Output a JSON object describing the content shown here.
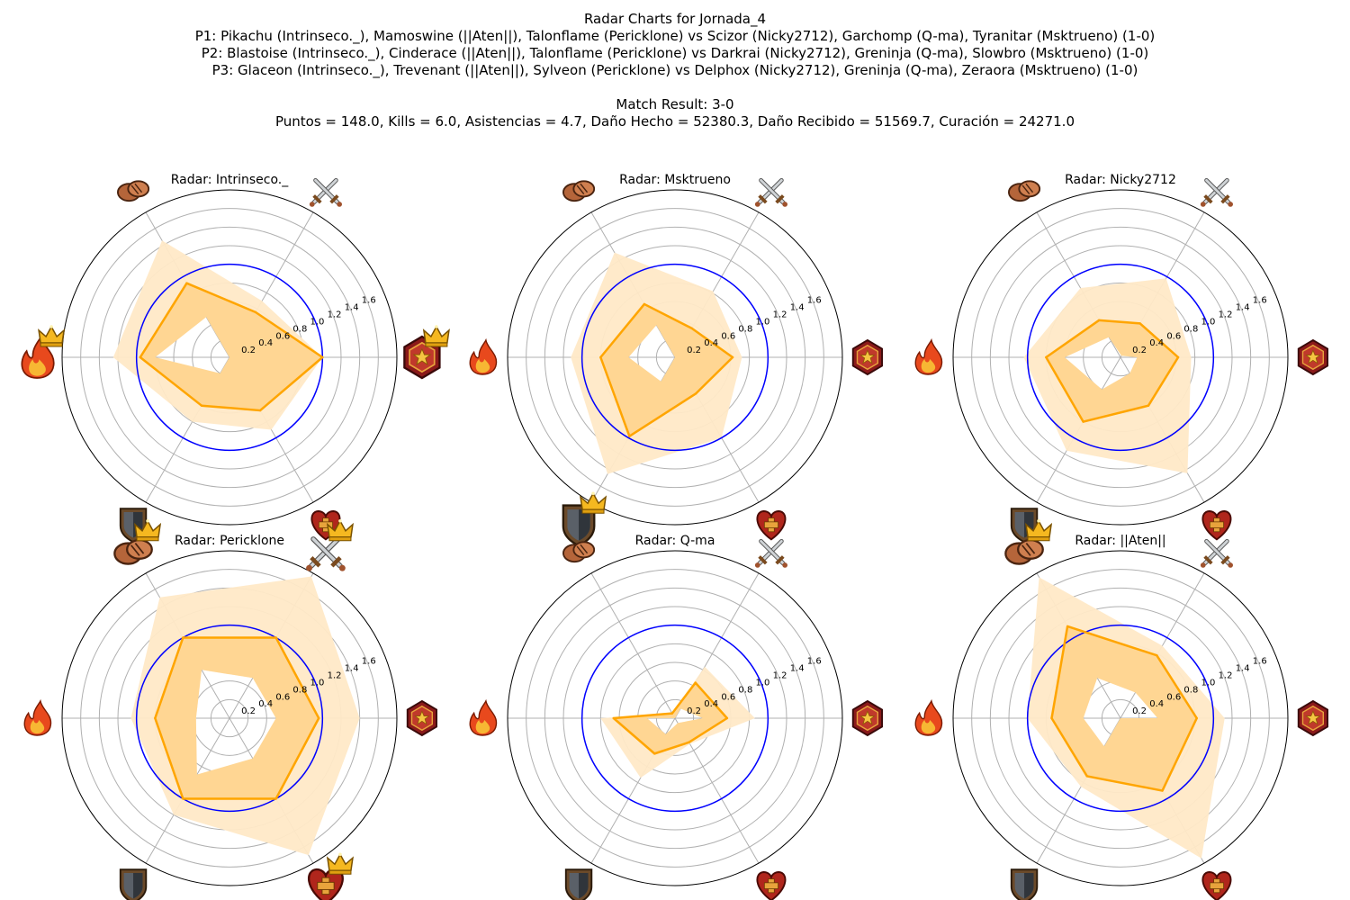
{
  "header": {
    "title": "Radar Charts for Jornada_4",
    "p1": "P1: Pikachu (Intrinseco._), Mamoswine (||Aten||), Talonflame (Pericklone) vs Scizor (Nicky2712), Garchomp (Q-ma), Tyranitar (Msktrueno) (1-0)",
    "p2": "P2: Blastoise (Intrinseco._), Cinderace (||Aten||), Talonflame (Pericklone) vs Darkrai (Nicky2712), Greninja (Q-ma), Slowbro (Msktrueno) (1-0)",
    "p3": "P3: Glaceon (Intrinseco._), Trevenant (||Aten||), Sylveon (Pericklone) vs Delphox (Nicky2712), Greninja (Q-ma), Zeraora (Msktrueno) (1-0)",
    "result": "Match Result: 3-0",
    "stats": "Puntos = 148.0, Kills = 6.0, Asistencias = 4.7, Daño Hecho = 52380.3, Daño Recibido = 51569.7, Curación = 24271.0"
  },
  "colors": {
    "line": "#ffa500",
    "fill": "#ffd28a",
    "fill_light": "#ffe9c7",
    "reference_circle": "#0000ff",
    "grid": "#b0b0b0"
  },
  "axis_icons": [
    "star-badge-icon",
    "crossed-swords-icon",
    "handshake-icon",
    "fire-icon",
    "shield-icon",
    "heart-plus-icon"
  ],
  "chart_data": [
    {
      "type": "radar",
      "title": "Radar: Intrinseco._",
      "axes_order": [
        "star-badge-icon",
        "crossed-swords-icon",
        "handshake-icon",
        "fire-icon",
        "shield-icon",
        "heart-plus-icon"
      ],
      "rlim": [
        0,
        1.8
      ],
      "rticks": [
        "0.2",
        "0.4",
        "0.6",
        "0.8",
        "1.0",
        "1.2",
        "1.4",
        "1.6"
      ],
      "reference": 1.0,
      "values": [
        1.0,
        0.56,
        0.92,
        0.96,
        0.6,
        0.66
      ],
      "range_min": [
        0.58,
        0.0,
        0.5,
        0.8,
        0.2,
        0.0
      ],
      "range_max": [
        1.0,
        0.7,
        1.45,
        1.25,
        0.8,
        0.9
      ],
      "crowns": [
        "star-badge-icon",
        "fire-icon"
      ]
    },
    {
      "type": "radar",
      "title": "Radar: Msktrueno",
      "axes_order": [
        "star-badge-icon",
        "crossed-swords-icon",
        "handshake-icon",
        "fire-icon",
        "shield-icon",
        "heart-plus-icon"
      ],
      "rlim": [
        0,
        1.8
      ],
      "rticks": [
        "0.2",
        "0.4",
        "0.6",
        "0.8",
        "1.0",
        "1.2",
        "1.4",
        "1.6"
      ],
      "reference": 1.0,
      "values": [
        0.62,
        0.36,
        0.66,
        0.8,
        0.98,
        0.45
      ],
      "range_min": [
        0.2,
        0.0,
        0.4,
        0.5,
        0.3,
        0.0
      ],
      "range_max": [
        0.72,
        0.82,
        1.3,
        1.12,
        1.45,
        1.0
      ],
      "crowns": [
        "shield-icon"
      ]
    },
    {
      "type": "radar",
      "title": "Radar: Nicky2712",
      "axes_order": [
        "star-badge-icon",
        "crossed-swords-icon",
        "handshake-icon",
        "fire-icon",
        "shield-icon",
        "heart-plus-icon"
      ],
      "rlim": [
        0,
        1.8
      ],
      "rticks": [
        "0.2",
        "0.4",
        "0.6",
        "0.8",
        "1.0",
        "1.2",
        "1.4",
        "1.6"
      ],
      "reference": 1.0,
      "values": [
        0.62,
        0.42,
        0.46,
        0.8,
        0.8,
        0.6
      ],
      "range_min": [
        0.18,
        0.02,
        0.25,
        0.6,
        0.4,
        0.2
      ],
      "range_max": [
        0.76,
        0.98,
        0.86,
        1.04,
        1.16,
        1.44
      ],
      "crowns": []
    },
    {
      "type": "radar",
      "title": "Radar: Pericklone",
      "axes_order": [
        "star-badge-icon",
        "crossed-swords-icon",
        "handshake-icon",
        "fire-icon",
        "shield-icon",
        "heart-plus-icon"
      ],
      "rlim": [
        0,
        1.8
      ],
      "rticks": [
        "0.2",
        "0.4",
        "0.6",
        "0.8",
        "1.0",
        "1.2",
        "1.4",
        "1.6"
      ],
      "reference": 1.0,
      "values": [
        0.96,
        1.0,
        1.0,
        0.8,
        1.0,
        1.0
      ],
      "range_min": [
        0.5,
        0.5,
        0.6,
        0.36,
        0.7,
        0.5
      ],
      "range_max": [
        1.4,
        1.76,
        1.5,
        1.06,
        1.2,
        1.7
      ],
      "crowns": [
        "handshake-icon",
        "crossed-swords-icon",
        "heart-plus-icon"
      ]
    },
    {
      "type": "radar",
      "title": "Radar: Q-ma",
      "axes_order": [
        "star-badge-icon",
        "crossed-swords-icon",
        "handshake-icon",
        "fire-icon",
        "shield-icon",
        "heart-plus-icon"
      ],
      "rlim": [
        0,
        1.8
      ],
      "rticks": [
        "0.2",
        "0.4",
        "0.6",
        "0.8",
        "1.0",
        "1.2",
        "1.4",
        "1.6"
      ],
      "reference": 1.0,
      "values": [
        0.56,
        0.44,
        0.06,
        0.66,
        0.44,
        0.3
      ],
      "range_min": [
        0.3,
        0.12,
        0.0,
        0.3,
        0.2,
        0.06
      ],
      "range_max": [
        0.86,
        0.64,
        0.06,
        0.8,
        0.74,
        0.32
      ],
      "crowns": []
    },
    {
      "type": "radar",
      "title": "Radar: ||Aten||",
      "axes_order": [
        "star-badge-icon",
        "crossed-swords-icon",
        "handshake-icon",
        "fire-icon",
        "shield-icon",
        "heart-plus-icon"
      ],
      "rlim": [
        0,
        1.8
      ],
      "rticks": [
        "0.2",
        "0.4",
        "0.6",
        "0.8",
        "1.0",
        "1.2",
        "1.4",
        "1.6"
      ],
      "reference": 1.0,
      "values": [
        0.82,
        0.78,
        1.14,
        0.74,
        0.72,
        0.9
      ],
      "range_min": [
        0.4,
        0.32,
        0.5,
        0.4,
        0.35,
        0.0
      ],
      "range_max": [
        1.12,
        0.9,
        1.75,
        1.0,
        0.85,
        1.74
      ],
      "crowns": [
        "handshake-icon"
      ]
    }
  ]
}
